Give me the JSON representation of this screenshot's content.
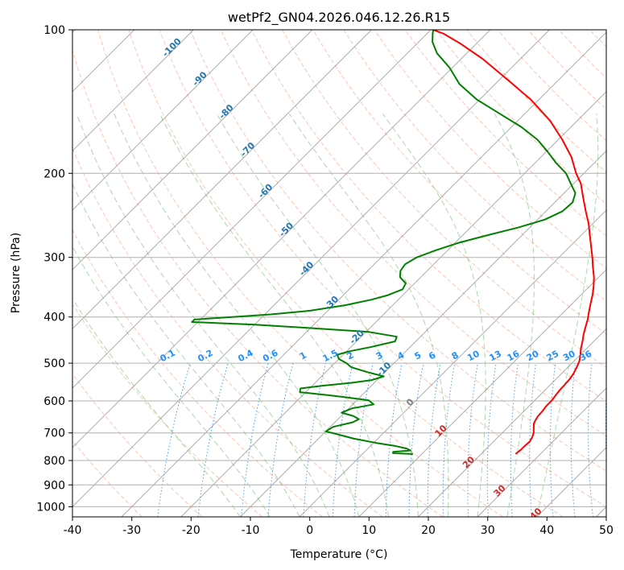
{
  "chart_data": {
    "type": "line",
    "title": "wetPf2_GN04.2026.046.12.26.R15",
    "xlabel": "Temperature (°C)",
    "ylabel": "Pressure (hPa)",
    "xlim": [
      -40,
      50
    ],
    "ylim": [
      1050,
      100
    ],
    "yscale": "log",
    "grid": true,
    "x_ticks": [
      -40,
      -30,
      -20,
      -10,
      0,
      10,
      20,
      30,
      40,
      50
    ],
    "y_ticks": [
      100,
      200,
      300,
      400,
      500,
      600,
      700,
      800,
      900,
      1000
    ],
    "skew_reference_pressure": 1000,
    "background_lines": {
      "isotherms_solid": [
        -130,
        -120,
        -110,
        -100,
        -90,
        -80,
        -70,
        -60,
        -50,
        -40,
        -30,
        -20,
        -10,
        0,
        10,
        20,
        30,
        40,
        50
      ],
      "isotherm_labels": [
        {
          "text": "-100",
          "t": -100,
          "p": 110
        },
        {
          "text": "-90",
          "t": -90,
          "p": 128
        },
        {
          "text": "-80",
          "t": -80,
          "p": 150
        },
        {
          "text": "-70",
          "t": -70,
          "p": 180
        },
        {
          "text": "-60",
          "t": -60,
          "p": 220
        },
        {
          "text": "-50",
          "t": -50,
          "p": 265
        },
        {
          "text": "-40",
          "t": -40,
          "p": 320
        },
        {
          "text": "-30",
          "t": -30,
          "p": 378
        },
        {
          "text": "-20",
          "t": -20,
          "p": 445
        },
        {
          "text": "-10",
          "t": -10,
          "p": 520
        },
        {
          "text": "0",
          "t": 0,
          "p": 610
        },
        {
          "text": "10",
          "t": 10,
          "p": 700
        },
        {
          "text": "20",
          "t": 20,
          "p": 815
        },
        {
          "text": "30",
          "t": 30,
          "p": 935
        },
        {
          "text": "40",
          "t": 40,
          "p": 1045
        }
      ],
      "isotherm_label_colors": {
        "cold": "#1f77b4",
        "zero": "#808080",
        "warm": "#d62728"
      },
      "mixing_ratio_labels": [
        "0.1",
        "0.2",
        "0.4",
        "0.6",
        "1",
        "1.5",
        "2",
        "3",
        "4",
        "5",
        "6",
        "8",
        "10",
        "13",
        "16",
        "20",
        "25",
        "30",
        "36"
      ],
      "dry_adiabat_color": "#ff7f50",
      "moist_adiabat_color": "#2ca02c",
      "mixing_ratio_color": "#1e90ff",
      "isotherm_color": "#808080"
    },
    "series": [
      {
        "color": "#ff0000",
        "points": [
          [
            25.8,
            775
          ],
          [
            26.0,
            760
          ],
          [
            26.0,
            745
          ],
          [
            26.1,
            730
          ],
          [
            25.8,
            715
          ],
          [
            25.3,
            700
          ],
          [
            24.8,
            690
          ],
          [
            24.3,
            680
          ],
          [
            23.8,
            670
          ],
          [
            23.5,
            660
          ],
          [
            23.2,
            645
          ],
          [
            23.1,
            630
          ],
          [
            22.9,
            615
          ],
          [
            22.9,
            600
          ],
          [
            22.7,
            585
          ],
          [
            22.5,
            570
          ],
          [
            22.4,
            555
          ],
          [
            22.3,
            540
          ],
          [
            22.0,
            525
          ],
          [
            21.5,
            510
          ],
          [
            20.9,
            495
          ],
          [
            20.0,
            480
          ],
          [
            19.0,
            465
          ],
          [
            18.1,
            450
          ],
          [
            17.1,
            435
          ],
          [
            16.2,
            420
          ],
          [
            15.3,
            405
          ],
          [
            14.2,
            390
          ],
          [
            13.1,
            375
          ],
          [
            12.0,
            360
          ],
          [
            10.7,
            345
          ],
          [
            9.2,
            330
          ],
          [
            7.4,
            315
          ],
          [
            5.6,
            300
          ],
          [
            3.6,
            285
          ],
          [
            1.5,
            270
          ],
          [
            -0.7,
            255
          ],
          [
            -3.3,
            240
          ],
          [
            -6.0,
            225
          ],
          [
            -8.8,
            210
          ],
          [
            -11.3,
            200
          ],
          [
            -14.8,
            185
          ],
          [
            -19.3,
            170
          ],
          [
            -24.6,
            155
          ],
          [
            -31.4,
            140
          ],
          [
            -38.8,
            127
          ],
          [
            -46.4,
            115
          ],
          [
            -52.6,
            107
          ],
          [
            -57.1,
            102
          ],
          [
            -59.6,
            100
          ]
        ]
      },
      {
        "color": "#008000",
        "points": [
          [
            8.5,
            775
          ],
          [
            5.0,
            772
          ],
          [
            4.8,
            767
          ],
          [
            7.5,
            762
          ],
          [
            6.5,
            755
          ],
          [
            4.0,
            745
          ],
          [
            0.5,
            735
          ],
          [
            -4.0,
            720
          ],
          [
            -7.5,
            705
          ],
          [
            -10.0,
            695
          ],
          [
            -9.5,
            680
          ],
          [
            -7.0,
            665
          ],
          [
            -6.5,
            655
          ],
          [
            -8.0,
            645
          ],
          [
            -10.5,
            635
          ],
          [
            -9.5,
            622
          ],
          [
            -6.5,
            610
          ],
          [
            -8.0,
            598
          ],
          [
            -12.0,
            590
          ],
          [
            -16.0,
            583
          ],
          [
            -21.0,
            575
          ],
          [
            -21.5,
            565
          ],
          [
            -18.0,
            557
          ],
          [
            -14.0,
            550
          ],
          [
            -11.0,
            543
          ],
          [
            -9.5,
            533
          ],
          [
            -13.0,
            522
          ],
          [
            -16.5,
            510
          ],
          [
            -18.0,
            500
          ],
          [
            -20.0,
            490
          ],
          [
            -21.0,
            480
          ],
          [
            -19.5,
            472
          ],
          [
            -16.5,
            462
          ],
          [
            -13.5,
            450
          ],
          [
            -14.0,
            440
          ],
          [
            -19.5,
            430
          ],
          [
            -30.0,
            422
          ],
          [
            -40.0,
            415
          ],
          [
            -51.0,
            410
          ],
          [
            -51.0,
            405
          ],
          [
            -45.0,
            400
          ],
          [
            -39.0,
            395
          ],
          [
            -33.0,
            388
          ],
          [
            -28.0,
            378
          ],
          [
            -24.5,
            368
          ],
          [
            -22.5,
            360
          ],
          [
            -21.0,
            350
          ],
          [
            -21.5,
            340
          ],
          [
            -23.5,
            330
          ],
          [
            -24.5,
            320
          ],
          [
            -24.8,
            310
          ],
          [
            -24.0,
            300
          ],
          [
            -22.0,
            290
          ],
          [
            -19.5,
            280
          ],
          [
            -16.0,
            270
          ],
          [
            -12.0,
            260
          ],
          [
            -8.8,
            250
          ],
          [
            -7.2,
            240
          ],
          [
            -7.0,
            230
          ],
          [
            -8.1,
            220
          ],
          [
            -10.5,
            210
          ],
          [
            -13.0,
            200
          ],
          [
            -16.5,
            190
          ],
          [
            -19.8,
            180
          ],
          [
            -23.5,
            170
          ],
          [
            -28.3,
            160
          ],
          [
            -34.2,
            150
          ],
          [
            -40.5,
            140
          ],
          [
            -46.0,
            130
          ],
          [
            -50.5,
            120
          ],
          [
            -55.0,
            112
          ],
          [
            -57.7,
            106
          ],
          [
            -59.0,
            102
          ],
          [
            -59.6,
            100
          ]
        ]
      }
    ]
  }
}
